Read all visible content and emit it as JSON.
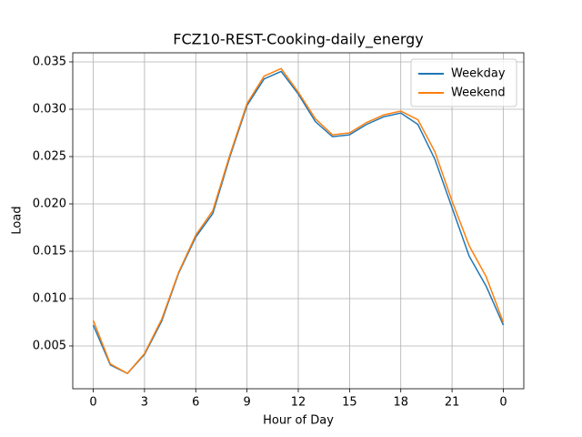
{
  "chart_data": {
    "type": "line",
    "title": "FCZ10-REST-Cooking-daily_energy",
    "x_label": "Hour of Day",
    "y_label": "Load",
    "x": [
      0,
      1,
      2,
      3,
      4,
      5,
      6,
      7,
      8,
      9,
      10,
      11,
      12,
      13,
      14,
      15,
      16,
      17,
      18,
      19,
      20,
      21,
      22,
      23,
      24
    ],
    "series": [
      {
        "name": "Weekday",
        "color": "#1f77b4",
        "values": [
          0.0072,
          0.003,
          0.0021,
          0.0041,
          0.0076,
          0.0127,
          0.0165,
          0.019,
          0.025,
          0.0304,
          0.0332,
          0.034,
          0.0316,
          0.0287,
          0.0271,
          0.0273,
          0.0284,
          0.0292,
          0.0296,
          0.0284,
          0.0247,
          0.0196,
          0.0145,
          0.0113,
          0.0072
        ]
      },
      {
        "name": "Weekend",
        "color": "#ff7f0e",
        "values": [
          0.0077,
          0.0031,
          0.0021,
          0.0042,
          0.0078,
          0.0128,
          0.0167,
          0.0193,
          0.0252,
          0.0306,
          0.0335,
          0.0343,
          0.0318,
          0.029,
          0.0273,
          0.0275,
          0.0286,
          0.0294,
          0.0298,
          0.0289,
          0.0255,
          0.0203,
          0.0156,
          0.0123,
          0.0075
        ]
      }
    ],
    "xlim": [
      -1.2,
      25.2
    ],
    "xticks": [
      0,
      3,
      6,
      9,
      12,
      15,
      18,
      21,
      {
        "value": 24,
        "label": "0"
      }
    ],
    "ylim": [
      0.00048,
      0.03596
    ],
    "yticks": [
      0.005,
      {
        "value": 0.01,
        "label": "0.010"
      },
      0.015,
      {
        "value": 0.02,
        "label": "0.020"
      },
      0.025,
      {
        "value": 0.03,
        "label": "0.030"
      },
      0.035
    ],
    "grid": true,
    "legend": "upper right"
  }
}
